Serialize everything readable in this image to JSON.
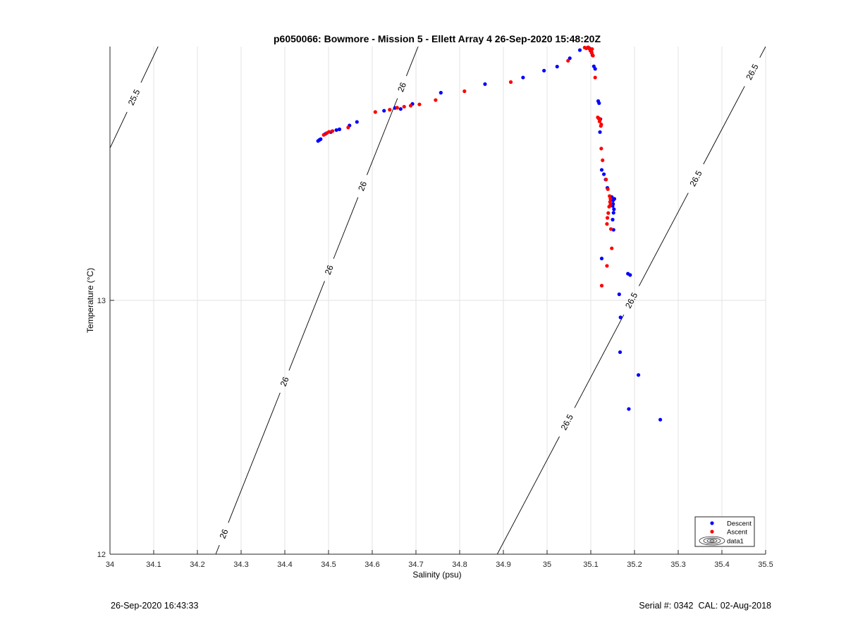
{
  "chart_data": {
    "type": "scatter",
    "title": "p6050066: Bowmore - Mission 5 - Ellett Array 4 26-Sep-2020 15:48:20Z",
    "xlabel": "Salinity (psu)",
    "ylabel": "Temperature (°C)",
    "xlim": [
      34,
      35.5
    ],
    "ylim": [
      12,
      14
    ],
    "xticks": [
      34,
      34.1,
      34.2,
      34.3,
      34.4,
      34.5,
      34.6,
      34.7,
      34.8,
      34.9,
      35,
      35.1,
      35.2,
      35.3,
      35.4,
      35.5
    ],
    "xtick_labels": [
      "34",
      "34.1",
      "34.2",
      "34.3",
      "34.4",
      "34.5",
      "34.6",
      "34.7",
      "34.8",
      "34.9",
      "35",
      "35.1",
      "35.2",
      "35.3",
      "35.4",
      "35.5"
    ],
    "yticks": [
      12,
      13
    ],
    "ytick_labels": [
      "12",
      "13"
    ],
    "grid": true,
    "legend_position": "bottom-right",
    "series": [
      {
        "name": "Descent",
        "color": "#0000ff",
        "points": [
          [
            34.476,
            13.628
          ],
          [
            34.479,
            13.632
          ],
          [
            34.482,
            13.635
          ],
          [
            34.493,
            13.656
          ],
          [
            34.505,
            13.663
          ],
          [
            34.518,
            13.671
          ],
          [
            34.525,
            13.674
          ],
          [
            34.548,
            13.689
          ],
          [
            34.565,
            13.703
          ],
          [
            34.627,
            13.747
          ],
          [
            34.652,
            13.758
          ],
          [
            34.665,
            13.754
          ],
          [
            34.692,
            13.774
          ],
          [
            34.757,
            13.818
          ],
          [
            34.858,
            13.852
          ],
          [
            34.945,
            13.878
          ],
          [
            34.993,
            13.905
          ],
          [
            35.023,
            13.921
          ],
          [
            35.052,
            13.954
          ],
          [
            35.075,
            13.986
          ],
          [
            35.092,
            13.995
          ],
          [
            35.097,
            13.993
          ],
          [
            35.099,
            13.988
          ],
          [
            35.102,
            13.977
          ],
          [
            35.104,
            13.966
          ],
          [
            35.107,
            13.922
          ],
          [
            35.11,
            13.912
          ],
          [
            35.117,
            13.785
          ],
          [
            35.119,
            13.777
          ],
          [
            35.122,
            13.714
          ],
          [
            35.121,
            13.663
          ],
          [
            35.125,
            13.514
          ],
          [
            35.13,
            13.497
          ],
          [
            35.134,
            13.476
          ],
          [
            35.138,
            13.443
          ],
          [
            35.148,
            13.407
          ],
          [
            35.151,
            13.394
          ],
          [
            35.154,
            13.4
          ],
          [
            35.151,
            13.38
          ],
          [
            35.15,
            13.372
          ],
          [
            35.153,
            13.359
          ],
          [
            35.152,
            13.345
          ],
          [
            35.15,
            13.318
          ],
          [
            35.152,
            13.278
          ],
          [
            35.125,
            13.165
          ],
          [
            35.185,
            13.105
          ],
          [
            35.19,
            13.1
          ],
          [
            35.165,
            13.024
          ],
          [
            35.168,
            12.933
          ],
          [
            35.167,
            12.796
          ],
          [
            35.209,
            12.706
          ],
          [
            35.187,
            12.572
          ],
          [
            35.259,
            12.53
          ]
        ]
      },
      {
        "name": "Ascent",
        "color": "#ff0000",
        "points": [
          [
            34.489,
            13.652
          ],
          [
            34.496,
            13.659
          ],
          [
            34.501,
            13.664
          ],
          [
            34.509,
            13.667
          ],
          [
            34.545,
            13.681
          ],
          [
            34.607,
            13.742
          ],
          [
            34.64,
            13.751
          ],
          [
            34.657,
            13.759
          ],
          [
            34.673,
            13.763
          ],
          [
            34.688,
            13.767
          ],
          [
            34.708,
            13.772
          ],
          [
            34.745,
            13.789
          ],
          [
            34.811,
            13.824
          ],
          [
            34.917,
            13.86
          ],
          [
            35.048,
            13.944
          ],
          [
            35.086,
            13.996
          ],
          [
            35.09,
            13.993
          ],
          [
            35.094,
            13.997
          ],
          [
            35.097,
            13.992
          ],
          [
            35.099,
            13.984
          ],
          [
            35.102,
            13.975
          ],
          [
            35.105,
            13.964
          ],
          [
            35.101,
            13.987
          ],
          [
            35.103,
            13.99
          ],
          [
            35.11,
            13.878
          ],
          [
            35.116,
            13.721
          ],
          [
            35.118,
            13.717
          ],
          [
            35.121,
            13.713
          ],
          [
            35.123,
            13.687
          ],
          [
            35.124,
            13.693
          ],
          [
            35.12,
            13.705
          ],
          [
            35.124,
            13.598
          ],
          [
            35.127,
            13.552
          ],
          [
            35.135,
            13.476
          ],
          [
            35.139,
            13.438
          ],
          [
            35.143,
            13.411
          ],
          [
            35.145,
            13.4
          ],
          [
            35.144,
            13.388
          ],
          [
            35.145,
            13.377
          ],
          [
            35.142,
            13.369
          ],
          [
            35.14,
            13.344
          ],
          [
            35.138,
            13.325
          ],
          [
            35.137,
            13.301
          ],
          [
            35.146,
            13.281
          ],
          [
            35.148,
            13.205
          ],
          [
            35.137,
            13.136
          ],
          [
            35.125,
            13.058
          ]
        ]
      }
    ],
    "contours": [
      {
        "label": "25.5",
        "points": [
          [
            34.0,
            13.6
          ],
          [
            34.11,
            14.0
          ]
        ],
        "label_positions": [
          0.5
        ]
      },
      {
        "label": "26",
        "points": [
          [
            34.242,
            12.0
          ],
          [
            34.705,
            14.0
          ]
        ],
        "label_positions": [
          0.04,
          0.34,
          0.56,
          0.725,
          0.92
        ]
      },
      {
        "label": "26.5",
        "points": [
          [
            34.886,
            12.0
          ],
          [
            35.5,
            14.0
          ]
        ],
        "label_positions": [
          0.26,
          0.5,
          0.74,
          0.95
        ]
      }
    ],
    "legend": [
      "Descent",
      "Ascent",
      "data1"
    ]
  },
  "footer": {
    "left": "26-Sep-2020 16:43:33",
    "right": "Serial #: 0342  CAL: 02-Aug-2018"
  }
}
